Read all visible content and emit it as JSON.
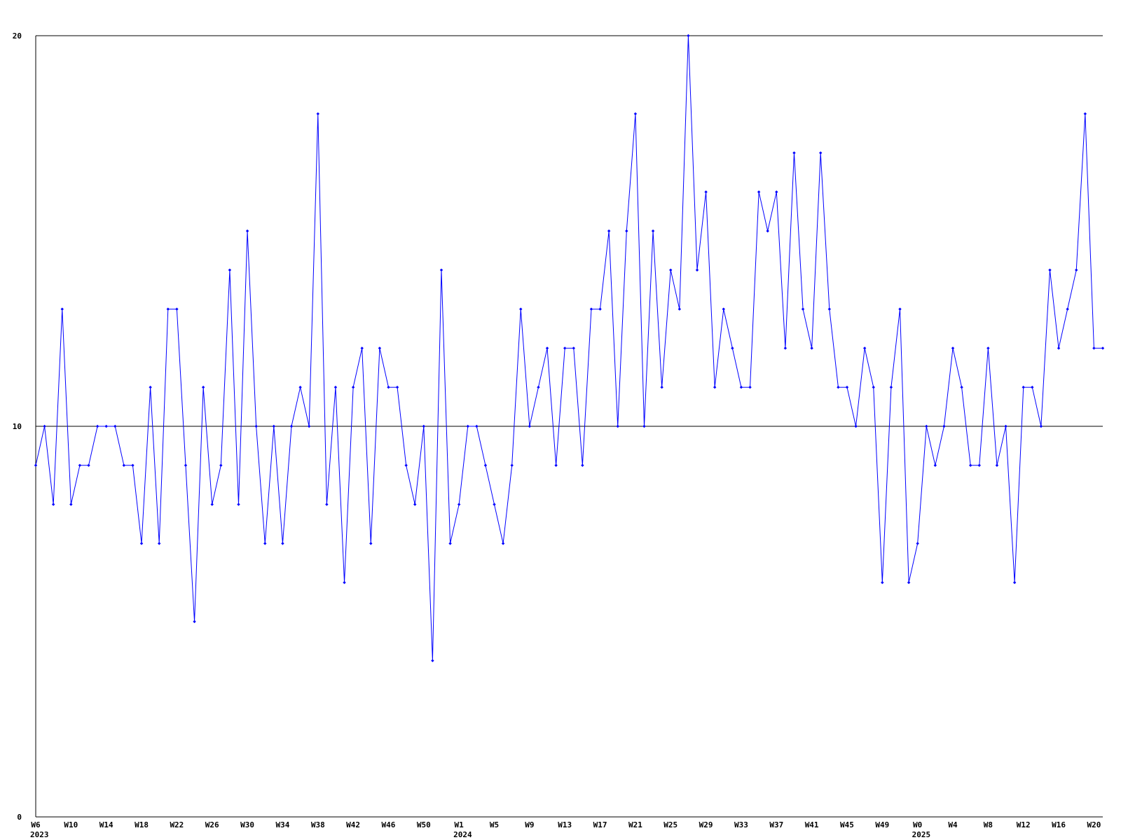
{
  "chart_data": {
    "type": "line",
    "categories": [
      "W6",
      null,
      null,
      null,
      "W10",
      null,
      null,
      null,
      "W14",
      null,
      null,
      null,
      "W18",
      null,
      null,
      null,
      "W22",
      null,
      null,
      null,
      "W26",
      null,
      null,
      null,
      "W30",
      null,
      null,
      null,
      "W34",
      null,
      null,
      null,
      "W38",
      null,
      null,
      null,
      "W42",
      null,
      null,
      null,
      "W46",
      null,
      null,
      null,
      "W50",
      null,
      null,
      null,
      "W1",
      null,
      null,
      null,
      "W5",
      null,
      null,
      null,
      "W9",
      null,
      null,
      null,
      "W13",
      null,
      null,
      null,
      "W17",
      null,
      null,
      null,
      "W21",
      null,
      null,
      null,
      "W25",
      null,
      null,
      null,
      "W29",
      null,
      null,
      null,
      "W33",
      null,
      null,
      null,
      "W37",
      null,
      null,
      null,
      "W41",
      null,
      null,
      null,
      "W45",
      null,
      null,
      null,
      "W49",
      null,
      null,
      null,
      "W0",
      null,
      null,
      null,
      "W4",
      null,
      null,
      null,
      "W8",
      null,
      null,
      null,
      "W12",
      null,
      null,
      null,
      "W16",
      null,
      null,
      null,
      "W20",
      null
    ],
    "category_years": [
      "2023",
      null,
      null,
      null,
      null,
      null,
      null,
      null,
      null,
      null,
      null,
      null,
      null,
      null,
      null,
      null,
      null,
      null,
      null,
      null,
      null,
      null,
      null,
      null,
      null,
      null,
      null,
      null,
      null,
      null,
      null,
      null,
      null,
      null,
      null,
      null,
      null,
      null,
      null,
      null,
      null,
      null,
      null,
      null,
      null,
      null,
      null,
      null,
      "2024",
      null,
      null,
      null,
      null,
      null,
      null,
      null,
      null,
      null,
      null,
      null,
      null,
      null,
      null,
      null,
      null,
      null,
      null,
      null,
      null,
      null,
      null,
      null,
      null,
      null,
      null,
      null,
      null,
      null,
      null,
      null,
      null,
      null,
      null,
      null,
      null,
      null,
      null,
      null,
      null,
      null,
      null,
      null,
      null,
      null,
      null,
      null,
      null,
      null,
      null,
      null,
      "2025",
      null,
      null,
      null,
      null,
      null,
      null,
      null,
      null,
      null,
      null,
      null,
      null,
      null,
      null,
      null,
      null,
      null,
      null,
      null,
      null,
      null
    ],
    "series": [
      {
        "color": "#0000ff",
        "values": [
          9,
          10,
          8,
          13,
          8,
          9,
          9,
          10,
          10,
          10,
          9,
          9,
          7,
          11,
          7,
          13,
          13,
          9,
          5,
          11,
          8,
          9,
          14,
          8,
          15,
          10,
          7,
          10,
          7,
          10,
          11,
          10,
          18,
          8,
          11,
          6,
          11,
          12,
          7,
          12,
          11,
          11,
          9,
          8,
          10,
          4,
          14,
          7,
          8,
          10,
          10,
          9,
          8,
          7,
          9,
          13,
          10,
          11,
          12,
          9,
          12,
          12,
          9,
          13,
          13,
          15,
          10,
          15,
          18,
          10,
          15,
          11,
          14,
          13,
          20,
          14,
          16,
          11,
          13,
          12,
          11,
          11,
          16,
          15,
          16,
          12,
          17,
          13,
          12,
          17,
          13,
          11,
          11,
          10,
          12,
          11,
          6,
          11,
          13,
          6,
          7,
          10,
          9,
          10,
          12,
          11,
          9,
          9,
          12,
          9,
          10,
          6,
          11,
          11,
          10,
          14,
          12,
          13,
          14,
          18,
          12,
          12
        ]
      }
    ],
    "ylim": [
      0,
      20
    ],
    "yticks": [
      0,
      10,
      20
    ],
    "grid": true
  }
}
